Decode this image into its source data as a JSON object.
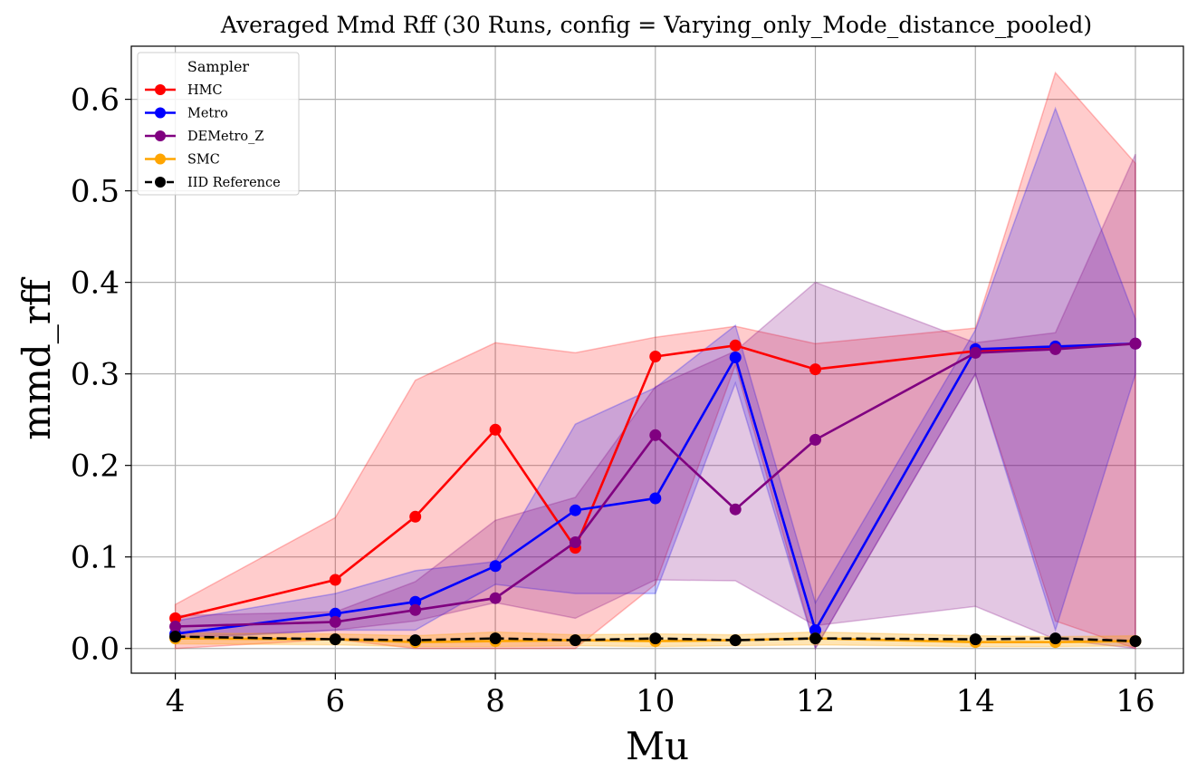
{
  "chart_data": {
    "type": "line",
    "title": "Averaged Mmd Rff (30 Runs, config = Varying_only_Mode_distance_pooled)",
    "xlabel": "Mu",
    "ylabel": "mmd_rff",
    "xlim": [
      3.45,
      16.6
    ],
    "ylim": [
      -0.027,
      0.658
    ],
    "x_ticks": [
      4,
      6,
      8,
      10,
      12,
      14,
      16
    ],
    "y_ticks": [
      0.0,
      0.1,
      0.2,
      0.3,
      0.4,
      0.5,
      0.6
    ],
    "y_tick_labels": [
      "0.0",
      "0.1",
      "0.2",
      "0.3",
      "0.4",
      "0.5",
      "0.6"
    ],
    "grid": true,
    "legend": {
      "title": "Sampler",
      "position": "top-left"
    },
    "x": [
      4,
      6,
      7,
      8,
      9,
      10,
      11,
      12,
      14,
      15,
      16
    ],
    "series": [
      {
        "name": "HMC",
        "color": "#ff0000",
        "fill_color": "#ff0000",
        "fill_opacity": 0.2,
        "dashed": false,
        "values": [
          0.033,
          0.075,
          0.144,
          0.239,
          0.11,
          0.319,
          0.331,
          0.305,
          0.325,
          0.329,
          0.333
        ],
        "lower": [
          0.0,
          0.01,
          0.0,
          0.0,
          0.0,
          0.07,
          0.31,
          0.0,
          0.3,
          0.03,
          0.0
        ],
        "upper": [
          0.048,
          0.143,
          0.293,
          0.334,
          0.323,
          0.34,
          0.352,
          0.333,
          0.35,
          0.629,
          0.53
        ]
      },
      {
        "name": "Metro",
        "color": "#0000ff",
        "fill_color": "#0000ff",
        "fill_opacity": 0.2,
        "dashed": false,
        "values": [
          0.016,
          0.038,
          0.051,
          0.09,
          0.151,
          0.164,
          0.318,
          0.02,
          0.327,
          0.33,
          0.333
        ],
        "lower": [
          0.01,
          0.02,
          0.02,
          0.07,
          0.06,
          0.06,
          0.29,
          0.0,
          0.3,
          0.02,
          0.3
        ],
        "upper": [
          0.03,
          0.06,
          0.085,
          0.095,
          0.245,
          0.285,
          0.353,
          0.05,
          0.348,
          0.59,
          0.36
        ]
      },
      {
        "name": "DEMetro_Z",
        "color": "#800080",
        "fill_color": "#800080",
        "fill_opacity": 0.22,
        "dashed": false,
        "values": [
          0.024,
          0.029,
          0.042,
          0.055,
          0.116,
          0.233,
          0.152,
          0.228,
          0.323,
          0.327,
          0.333
        ],
        "lower": [
          0.012,
          0.02,
          0.03,
          0.05,
          0.033,
          0.075,
          0.074,
          0.025,
          0.046,
          0.01,
          0.0
        ],
        "upper": [
          0.036,
          0.04,
          0.073,
          0.14,
          0.165,
          0.286,
          0.325,
          0.4,
          0.334,
          0.345,
          0.54
        ]
      },
      {
        "name": "SMC",
        "color": "#ffa500",
        "fill_color": "#ffa500",
        "fill_opacity": 0.3,
        "dashed": false,
        "values": [
          0.011,
          0.01,
          0.007,
          0.008,
          0.009,
          0.008,
          0.009,
          0.011,
          0.007,
          0.007,
          0.008
        ],
        "lower": [
          0.005,
          0.004,
          0.002,
          0.002,
          0.003,
          0.002,
          0.003,
          0.004,
          0.002,
          0.002,
          0.003
        ],
        "upper": [
          0.017,
          0.016,
          0.014,
          0.018,
          0.015,
          0.016,
          0.015,
          0.018,
          0.014,
          0.013,
          0.014
        ]
      },
      {
        "name": "IID Reference",
        "color": "#000000",
        "dashed": true,
        "values": [
          0.013,
          0.01,
          0.009,
          0.011,
          0.009,
          0.011,
          0.009,
          0.011,
          0.01,
          0.011,
          0.008
        ]
      }
    ]
  }
}
